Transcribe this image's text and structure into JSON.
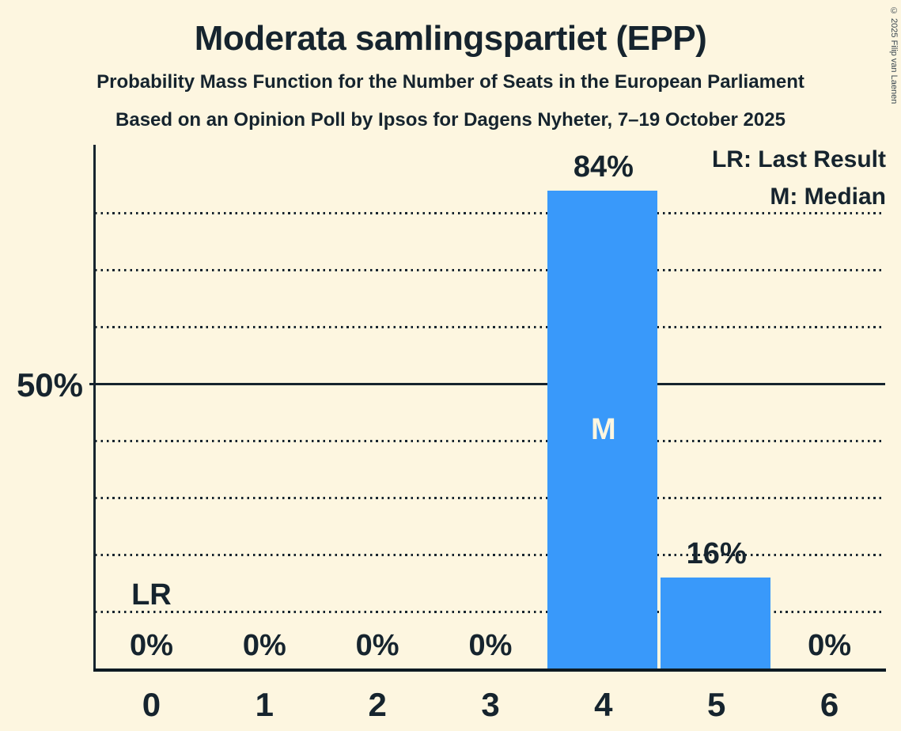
{
  "title": "Moderata samlingspartiet (EPP)",
  "subtitle1": "Probability Mass Function for the Number of Seats in the European Parliament",
  "subtitle2": "Based on an Opinion Poll by Ipsos for Dagens Nyheter, 7–19 October 2025",
  "copyright": "© 2025 Filip van Laenen",
  "legend": {
    "lr": "LR: Last Result",
    "m": "M: Median"
  },
  "y_axis": {
    "label_50": "50%"
  },
  "chart_data": {
    "type": "bar",
    "title": "Moderata samlingspartiet (EPP)",
    "xlabel": "",
    "ylabel": "",
    "categories": [
      "0",
      "1",
      "2",
      "3",
      "4",
      "5",
      "6"
    ],
    "values": [
      0,
      0,
      0,
      0,
      84,
      16,
      0
    ],
    "bar_labels": [
      "0%",
      "0%",
      "0%",
      "0%",
      "84%",
      "16%",
      "0%"
    ],
    "ylim": [
      0,
      92
    ],
    "gridlines_pct": [
      10,
      20,
      30,
      40,
      50,
      60,
      70,
      80
    ],
    "solid_gridline_pct": 50,
    "grid": "dotted-horizontal",
    "legend_position": "top-right",
    "median_category": "4",
    "median_marker": "M",
    "last_result_category": "0",
    "last_result_marker": "LR",
    "colors": {
      "bar": "#3999fa",
      "background": "#fdf6e0",
      "text": "#16242e",
      "marker_text": "#fdf6e0"
    }
  }
}
